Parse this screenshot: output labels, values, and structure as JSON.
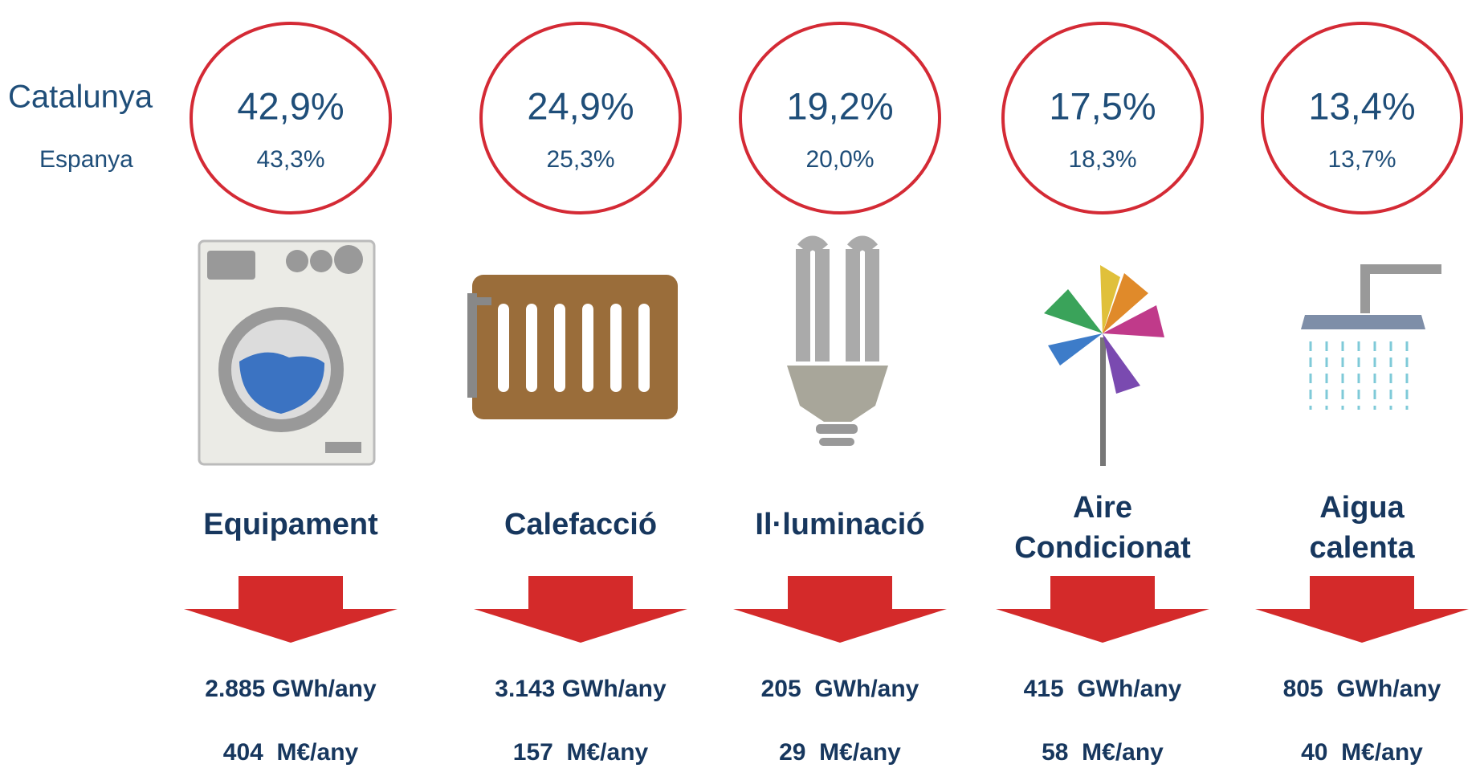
{
  "row_labels": [
    "Catalunya",
    "Espanya"
  ],
  "items": [
    {
      "catalunya": "42,9%",
      "espanya": "43,3%",
      "label_lines": [
        "Equipament"
      ],
      "energy": "2.885 GWh/any",
      "cost": "404  M€/any"
    },
    {
      "catalunya": "24,9%",
      "espanya": "25,3%",
      "label_lines": [
        "Calefacció"
      ],
      "energy": "3.143 GWh/any",
      "cost": "157  M€/any"
    },
    {
      "catalunya": "19,2%",
      "espanya": "20,0%",
      "label_lines": [
        "Il·luminació"
      ],
      "energy": "205  GWh/any",
      "cost": "29  M€/any"
    },
    {
      "catalunya": "17,5%",
      "espanya": "18,3%",
      "label_lines": [
        "Aire",
        "Condicionat"
      ],
      "energy": "415  GWh/any",
      "cost": "58  M€/any"
    },
    {
      "catalunya": "13,4%",
      "espanya": "13,7%",
      "label_lines": [
        "Aigua",
        "calenta"
      ],
      "energy": "805  GWh/any",
      "cost": "40  M€/any"
    }
  ]
}
